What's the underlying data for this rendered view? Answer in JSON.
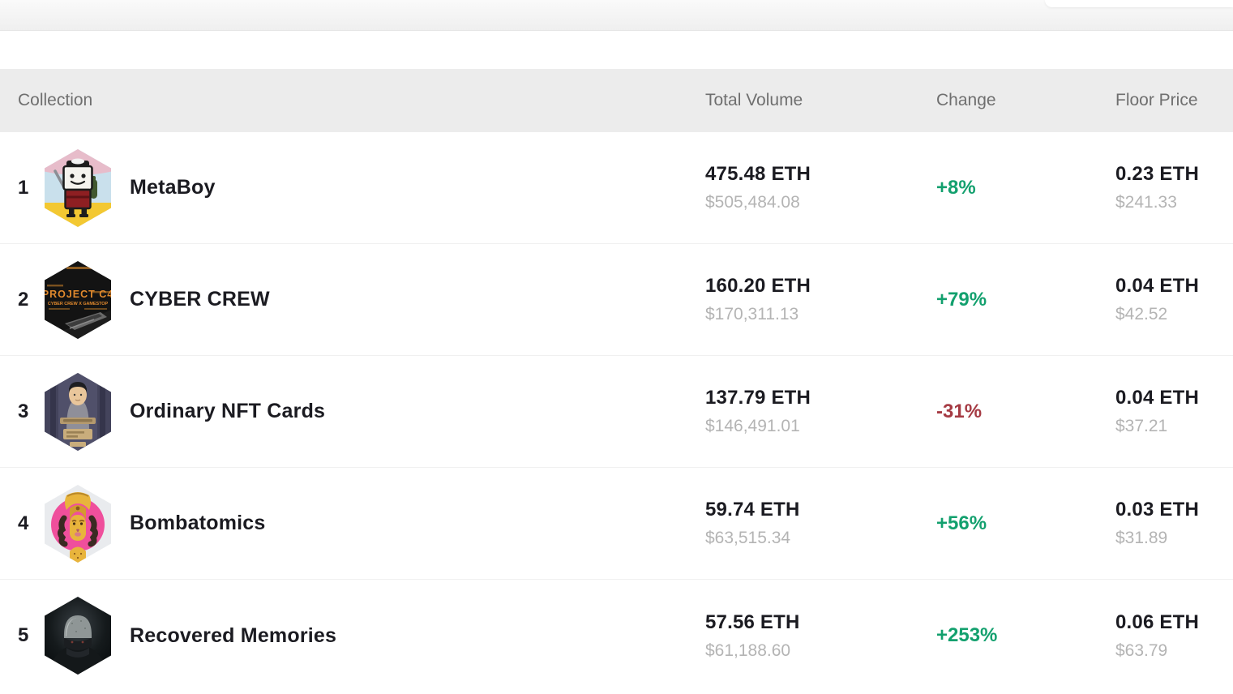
{
  "top_bar": {
    "white_notch": true
  },
  "table": {
    "headers": {
      "collection": "Collection",
      "total_volume": "Total Volume",
      "change": "Change",
      "floor_price": "Floor Price"
    },
    "rows": [
      {
        "rank": "1",
        "name": "MetaBoy",
        "icon": "metaboy-collection-icon",
        "volume_eth": "475.48 ETH",
        "volume_usd": "$505,484.08",
        "change": "+8%",
        "change_direction": "up",
        "floor_eth": "0.23 ETH",
        "floor_usd": "$241.33"
      },
      {
        "rank": "2",
        "name": "CYBER CREW",
        "icon": "cyber-crew-collection-icon",
        "volume_eth": "160.20 ETH",
        "volume_usd": "$170,311.13",
        "change": "+79%",
        "change_direction": "up",
        "floor_eth": "0.04 ETH",
        "floor_usd": "$42.52"
      },
      {
        "rank": "3",
        "name": "Ordinary NFT Cards",
        "icon": "ordinary-nft-cards-collection-icon",
        "volume_eth": "137.79 ETH",
        "volume_usd": "$146,491.01",
        "change": "-31%",
        "change_direction": "down",
        "floor_eth": "0.04 ETH",
        "floor_usd": "$37.21"
      },
      {
        "rank": "4",
        "name": "Bombatomics",
        "icon": "bombatomics-collection-icon",
        "volume_eth": "59.74 ETH",
        "volume_usd": "$63,515.34",
        "change": "+56%",
        "change_direction": "up",
        "floor_eth": "0.03 ETH",
        "floor_usd": "$31.89"
      },
      {
        "rank": "5",
        "name": "Recovered Memories",
        "icon": "recovered-memories-collection-icon",
        "volume_eth": "57.56 ETH",
        "volume_usd": "$61,188.60",
        "change": "+253%",
        "change_direction": "up",
        "floor_eth": "0.06 ETH",
        "floor_usd": "$63.79"
      }
    ]
  },
  "colors": {
    "positive": "#13a06e",
    "negative": "#a53a43",
    "header_bg": "#ececec",
    "header_text": "#6f6f6f",
    "primary_text": "#1b1b21",
    "secondary_text": "#b4b4b4"
  }
}
